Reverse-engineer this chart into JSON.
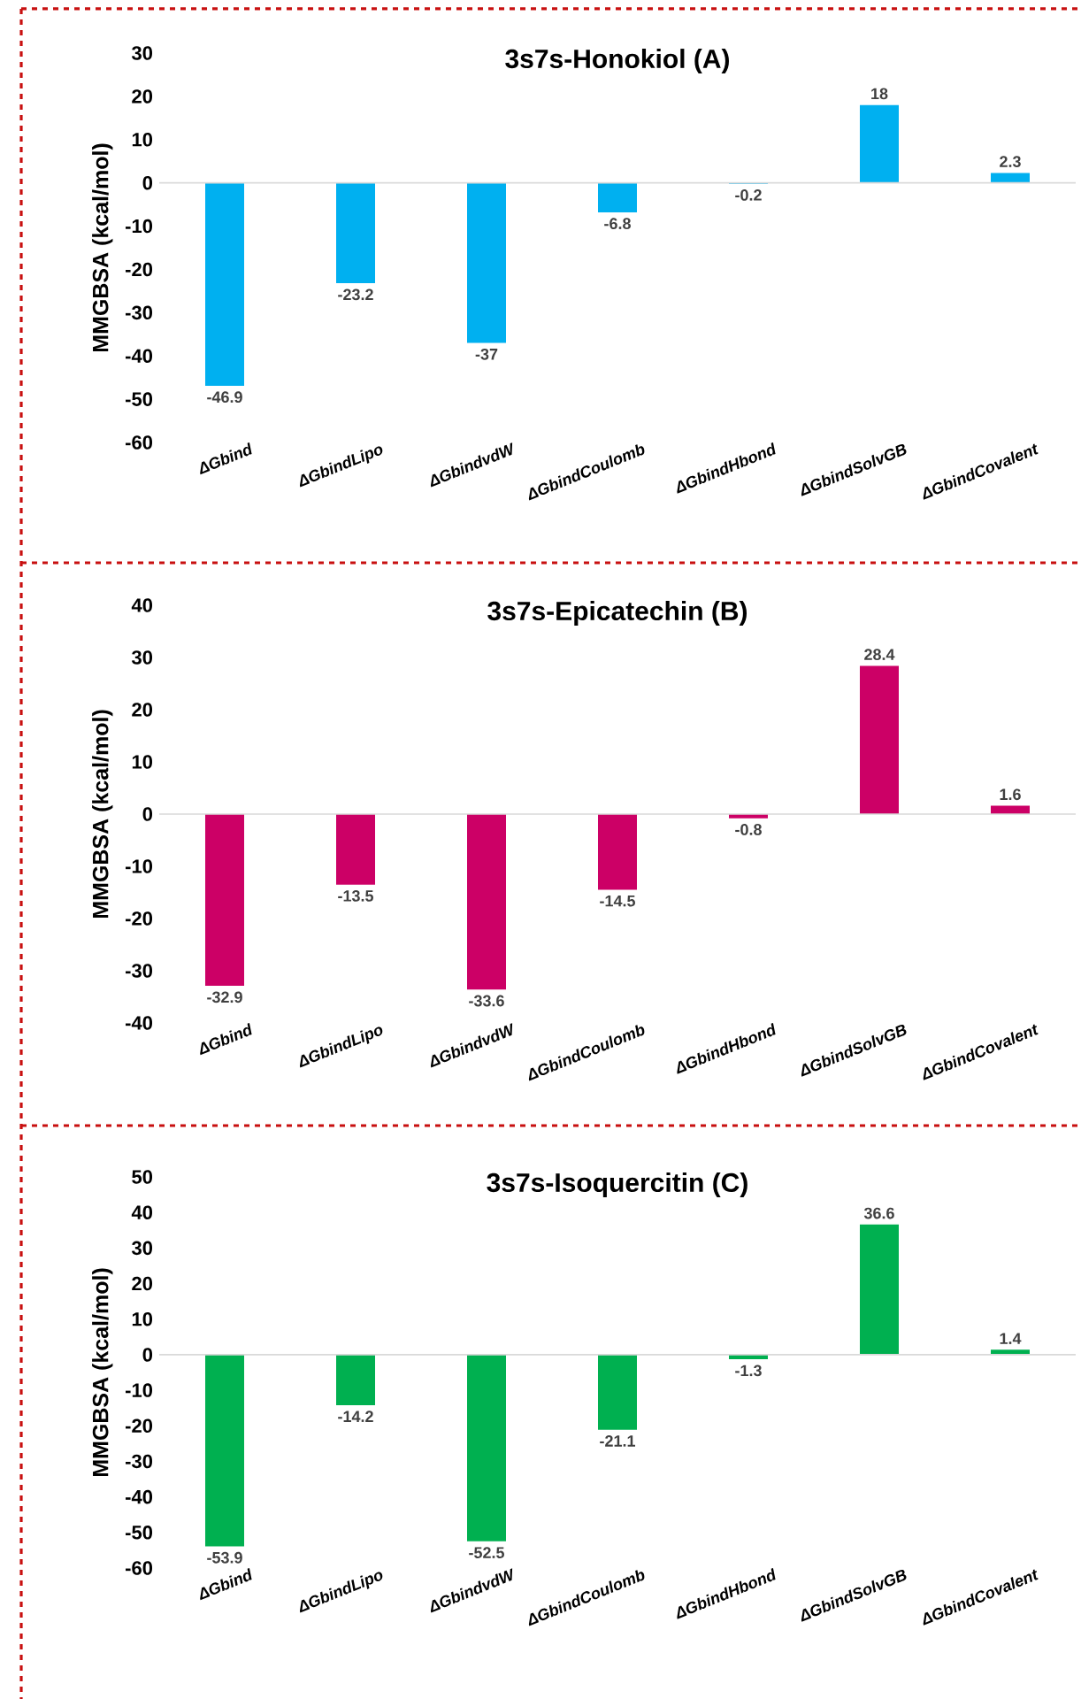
{
  "chart_data": [
    {
      "type": "bar",
      "title": "3s7s-Honokiol (A)",
      "ylabel": "MMGBSA (kcal/mol)",
      "categories": [
        "ΔGbind",
        "ΔGbindLipo",
        "ΔGbindvdW",
        "ΔGbindCoulomb",
        "ΔGbindHbond",
        "ΔGbindSolvGB",
        "ΔGbindCovalent"
      ],
      "values": [
        -46.9,
        -23.2,
        -37,
        -6.8,
        -0.2,
        18,
        2.3
      ],
      "color": "#00b0f0",
      "ylim": [
        -60,
        30
      ],
      "yticks": [
        -60,
        -50,
        -40,
        -30,
        -20,
        -10,
        0,
        10,
        20,
        30
      ],
      "data_labels": true
    },
    {
      "type": "bar",
      "title": "3s7s-Epicatechin (B)",
      "ylabel": "MMGBSA (kcal/mol)",
      "categories": [
        "ΔGbind",
        "ΔGbindLipo",
        "ΔGbindvdW",
        "ΔGbindCoulomb",
        "ΔGbindHbond",
        "ΔGbindSolvGB",
        "ΔGbindCovalent"
      ],
      "values": [
        -32.9,
        -13.5,
        -33.6,
        -14.5,
        -0.8,
        28.4,
        1.6
      ],
      "color": "#cc0066",
      "ylim": [
        -40,
        40
      ],
      "yticks": [
        -40,
        -30,
        -20,
        -10,
        0,
        10,
        20,
        30,
        40
      ],
      "data_labels": true
    },
    {
      "type": "bar",
      "title": "3s7s-Isoquercitin (C)",
      "ylabel": "MMGBSA (kcal/mol)",
      "categories": [
        "ΔGbind",
        "ΔGbindLipo",
        "ΔGbindvdW",
        "ΔGbindCoulomb",
        "ΔGbindHbond",
        "ΔGbindSolvGB",
        "ΔGbindCovalent"
      ],
      "values": [
        -53.9,
        -14.2,
        -52.5,
        -21.1,
        -1.3,
        36.6,
        1.4
      ],
      "color": "#00b050",
      "ylim": [
        -60,
        50
      ],
      "yticks": [
        -60,
        -50,
        -40,
        -30,
        -20,
        -10,
        0,
        10,
        20,
        30,
        40,
        50
      ],
      "data_labels": true
    }
  ]
}
